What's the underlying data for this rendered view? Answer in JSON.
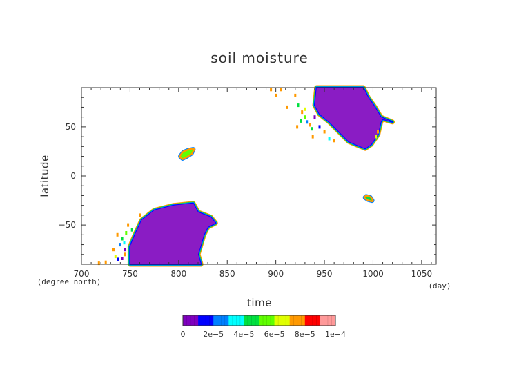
{
  "chart_data": {
    "type": "heatmap",
    "title": "soil moisture",
    "xlabel": "time",
    "ylabel": "latitude",
    "x_unit": "(day)",
    "y_unit": "(degree_north)",
    "xlim": [
      700,
      1065
    ],
    "ylim": [
      -90,
      90
    ],
    "x_ticks": [
      700,
      750,
      800,
      850,
      900,
      950,
      1000,
      1050
    ],
    "x_tick_labels": [
      "700",
      "750",
      "800",
      "850",
      "900",
      "950",
      "1000",
      "1050"
    ],
    "y_ticks": [
      50,
      0,
      -50
    ],
    "y_tick_labels": [
      "50",
      "0",
      "−50"
    ],
    "colorbar": {
      "min": 0,
      "max": 0.0001,
      "colors": [
        "#7f00bf",
        "#0000ff",
        "#0080ff",
        "#00ffff",
        "#00e040",
        "#60ff00",
        "#e0ff00",
        "#ff9900",
        "#ff0000",
        "#ff9999"
      ],
      "tick_labels": [
        "0",
        "2e−5",
        "4e−5",
        "6e−5",
        "8e−5",
        "1e−4"
      ]
    },
    "regions": [
      {
        "level": "0",
        "color": "#8a1cc4",
        "edge_colors": [
          "#0000ff",
          "#0080ff",
          "#00e040",
          "#ff9900"
        ],
        "polygon": [
          [
            750,
            -90
          ],
          [
            750,
            -72
          ],
          [
            755,
            -60
          ],
          [
            762,
            -45
          ],
          [
            775,
            -35
          ],
          [
            795,
            -30
          ],
          [
            815,
            -28
          ],
          [
            820,
            -37
          ],
          [
            833,
            -42
          ],
          [
            838,
            -48
          ],
          [
            830,
            -52
          ],
          [
            826,
            -60
          ],
          [
            823,
            -70
          ],
          [
            820,
            -80
          ],
          [
            823,
            -90
          ]
        ]
      },
      {
        "level": "0",
        "color": "#8a1cc4",
        "edge_colors": [
          "#0000ff",
          "#0080ff",
          "#00e040",
          "#ff9900"
        ],
        "polygon": [
          [
            942,
            90
          ],
          [
            940,
            72
          ],
          [
            945,
            63
          ],
          [
            955,
            55
          ],
          [
            965,
            45
          ],
          [
            975,
            35
          ],
          [
            992,
            28
          ],
          [
            998,
            32
          ],
          [
            1005,
            42
          ],
          [
            1008,
            55
          ],
          [
            1010,
            58
          ],
          [
            1020,
            55
          ],
          [
            1008,
            60
          ],
          [
            1002,
            70
          ],
          [
            995,
            80
          ],
          [
            990,
            90
          ]
        ]
      },
      {
        "level": "4e-5 to 8e-5",
        "color": "#60ff00",
        "edge_colors": [
          "#ff9900",
          "#0080ff"
        ],
        "polygon": [
          [
            802,
            20
          ],
          [
            805,
            24
          ],
          [
            810,
            26
          ],
          [
            815,
            27
          ],
          [
            813,
            23
          ],
          [
            808,
            20
          ],
          [
            804,
            18
          ]
        ]
      },
      {
        "level": "4e-5 to 8e-5",
        "color": "#00e040",
        "edge_colors": [
          "#ff9900",
          "#0080ff"
        ],
        "polygon": [
          [
            993,
            -21
          ],
          [
            997,
            -22
          ],
          [
            999,
            -25
          ],
          [
            995,
            -24
          ],
          [
            992,
            -22
          ]
        ]
      }
    ],
    "scatter_patches": [
      {
        "x": 737,
        "y": -60,
        "color": "#ff9900"
      },
      {
        "x": 740,
        "y": -70,
        "color": "#0080ff"
      },
      {
        "x": 742,
        "y": -64,
        "color": "#00e040"
      },
      {
        "x": 745,
        "y": -80,
        "color": "#ff9900"
      },
      {
        "x": 738,
        "y": -85,
        "color": "#0000ff"
      },
      {
        "x": 746,
        "y": -58,
        "color": "#60ff00"
      },
      {
        "x": 733,
        "y": -75,
        "color": "#ff9900"
      },
      {
        "x": 725,
        "y": -88,
        "color": "#ff9900"
      },
      {
        "x": 718,
        "y": -89,
        "color": "#ff9900"
      },
      {
        "x": 748,
        "y": -50,
        "color": "#ff9900"
      },
      {
        "x": 760,
        "y": -40,
        "color": "#ff9900"
      },
      {
        "x": 744,
        "y": -68,
        "color": "#00ffff"
      },
      {
        "x": 735,
        "y": -82,
        "color": "#e0ff00"
      },
      {
        "x": 752,
        "y": -55,
        "color": "#00e040"
      },
      {
        "x": 745,
        "y": -75,
        "color": "#7f00bf"
      },
      {
        "x": 742,
        "y": -84,
        "color": "#7f00bf"
      },
      {
        "x": 905,
        "y": 88,
        "color": "#ff9900"
      },
      {
        "x": 920,
        "y": 82,
        "color": "#ff9900"
      },
      {
        "x": 923,
        "y": 72,
        "color": "#00e040"
      },
      {
        "x": 927,
        "y": 65,
        "color": "#ff9900"
      },
      {
        "x": 930,
        "y": 60,
        "color": "#60ff00"
      },
      {
        "x": 932,
        "y": 55,
        "color": "#0080ff"
      },
      {
        "x": 935,
        "y": 52,
        "color": "#ff9900"
      },
      {
        "x": 937,
        "y": 48,
        "color": "#00e040"
      },
      {
        "x": 940,
        "y": 60,
        "color": "#7f00bf"
      },
      {
        "x": 945,
        "y": 50,
        "color": "#0000ff"
      },
      {
        "x": 950,
        "y": 45,
        "color": "#ff9900"
      },
      {
        "x": 955,
        "y": 38,
        "color": "#00ffff"
      },
      {
        "x": 960,
        "y": 36,
        "color": "#ff9900"
      },
      {
        "x": 912,
        "y": 70,
        "color": "#ff9900"
      },
      {
        "x": 900,
        "y": 82,
        "color": "#ff9900"
      },
      {
        "x": 895,
        "y": 88,
        "color": "#ff9900"
      },
      {
        "x": 930,
        "y": 68,
        "color": "#e0ff00"
      },
      {
        "x": 926,
        "y": 56,
        "color": "#00e040"
      },
      {
        "x": 1005,
        "y": 45,
        "color": "#ff9900"
      },
      {
        "x": 1003,
        "y": 40,
        "color": "#e0ff00"
      },
      {
        "x": 938,
        "y": 40,
        "color": "#ff9900"
      },
      {
        "x": 922,
        "y": 50,
        "color": "#ff9900"
      }
    ]
  }
}
